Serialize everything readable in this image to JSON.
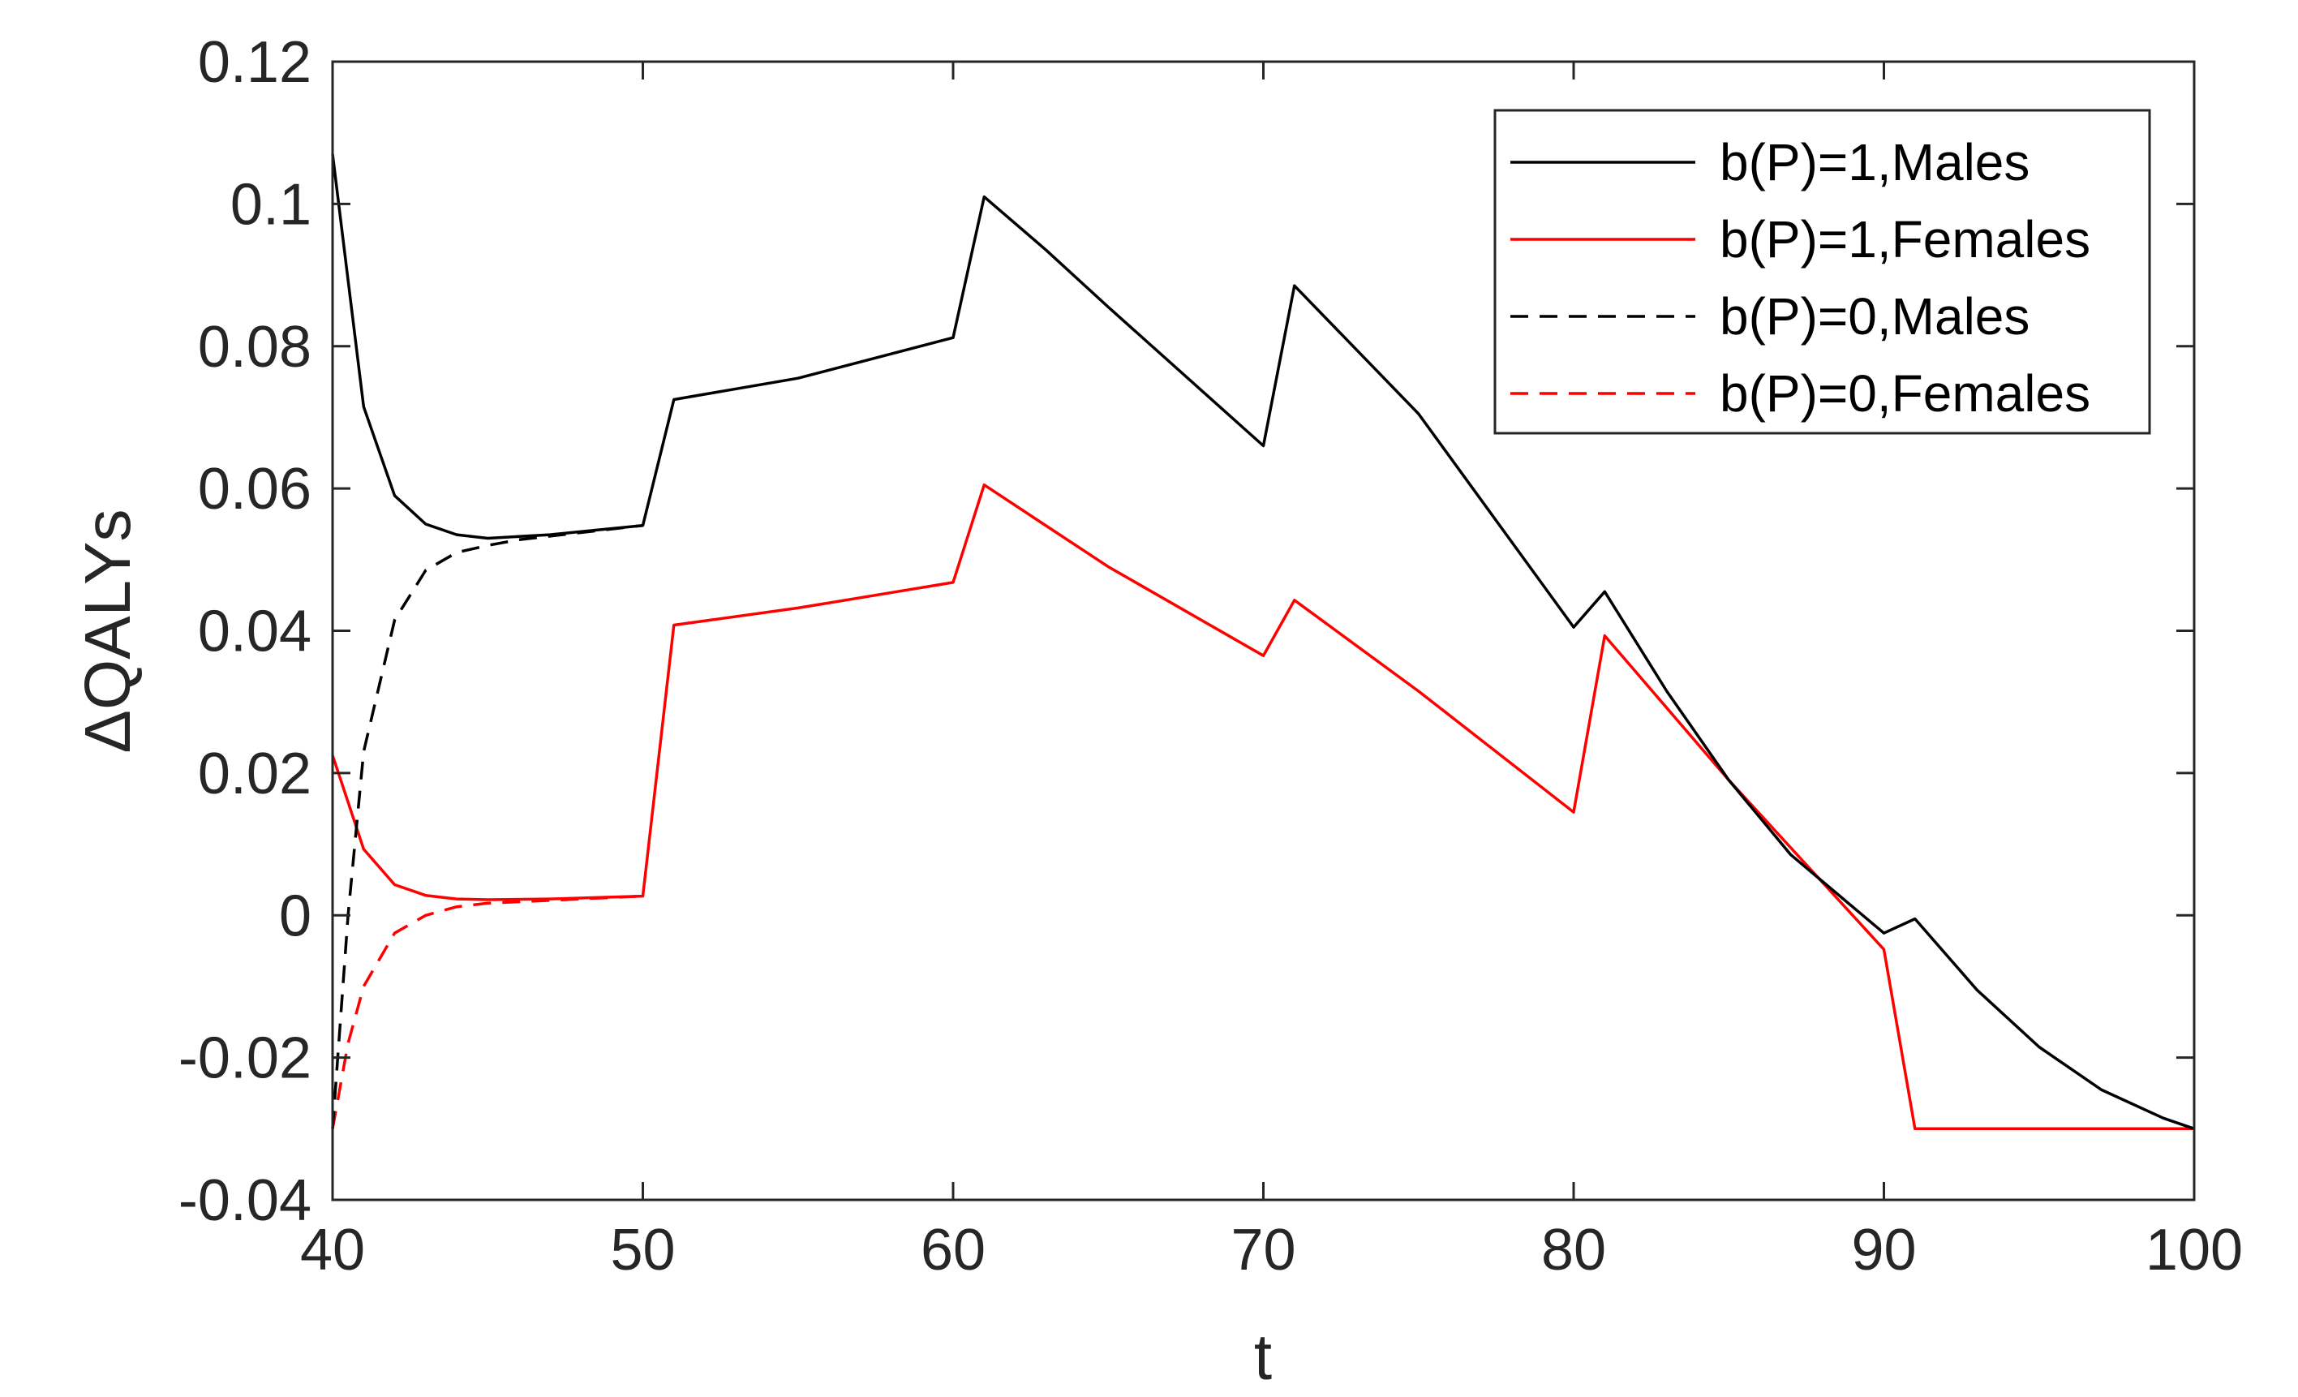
{
  "chart_data": {
    "type": "line",
    "xlabel": "t",
    "ylabel": "ΔQALYs",
    "xlim": [
      40,
      100
    ],
    "ylim": [
      -0.04,
      0.12
    ],
    "xticks": [
      40,
      50,
      60,
      70,
      80,
      90,
      100
    ],
    "xtick_labels": [
      "40",
      "50",
      "60",
      "70",
      "80",
      "90",
      "100"
    ],
    "yticks": [
      -0.04,
      -0.02,
      0,
      0.02,
      0.04,
      0.06,
      0.08,
      0.1,
      0.12
    ],
    "ytick_labels": [
      "-0.04",
      "-0.02",
      "0",
      "0.02",
      "0.04",
      "0.06",
      "0.08",
      "0.1",
      "0.12"
    ],
    "grid": false,
    "legend_position": "top-right",
    "series": [
      {
        "name": "b(P)=1,Males",
        "color": "#000000",
        "style": "solid",
        "x": [
          40,
          41,
          42,
          43,
          44,
          45,
          47,
          50,
          51,
          55,
          60,
          61,
          63,
          65,
          70,
          71,
          75,
          80,
          81,
          83,
          85,
          87,
          90,
          91,
          93,
          95,
          97,
          99,
          100
        ],
        "y": [
          0.107,
          0.0715,
          0.059,
          0.055,
          0.0535,
          0.053,
          0.0535,
          0.0548,
          0.0725,
          0.0755,
          0.0812,
          0.101,
          0.0935,
          0.0855,
          0.066,
          0.0885,
          0.0705,
          0.0405,
          0.0455,
          0.0315,
          0.019,
          0.0085,
          -0.0025,
          -0.0005,
          -0.0105,
          -0.0185,
          -0.0245,
          -0.0285,
          -0.03
        ]
      },
      {
        "name": "b(P)=1,Females",
        "color": "#ff0000",
        "style": "solid",
        "x": [
          40,
          41,
          42,
          43,
          44,
          45,
          47,
          50,
          51,
          55,
          60,
          61,
          65,
          70,
          71,
          75,
          80,
          81,
          85,
          90,
          91,
          95,
          100
        ],
        "y": [
          0.0225,
          0.0093,
          0.0043,
          0.0028,
          0.0023,
          0.0022,
          0.0023,
          0.0027,
          0.0408,
          0.0432,
          0.0468,
          0.0605,
          0.049,
          0.0365,
          0.0443,
          0.0315,
          0.0145,
          0.0393,
          0.019,
          -0.0048,
          -0.03,
          -0.03,
          -0.03
        ]
      },
      {
        "name": "b(P)=0,Males",
        "color": "#000000",
        "style": "dashed",
        "x": [
          40,
          40.5,
          41,
          42,
          43,
          44,
          45,
          46,
          47,
          50
        ],
        "y": [
          -0.03,
          0.0,
          0.023,
          0.0415,
          0.0485,
          0.051,
          0.052,
          0.0528,
          0.0533,
          0.0548
        ]
      },
      {
        "name": "b(P)=0,Females",
        "color": "#ff0000",
        "style": "dashed",
        "x": [
          40,
          40.5,
          41,
          42,
          43,
          44,
          45,
          46,
          47,
          50
        ],
        "y": [
          -0.03,
          -0.018,
          -0.01,
          -0.0025,
          0.0,
          0.0012,
          0.0017,
          0.0019,
          0.0021,
          0.0027
        ]
      }
    ]
  }
}
